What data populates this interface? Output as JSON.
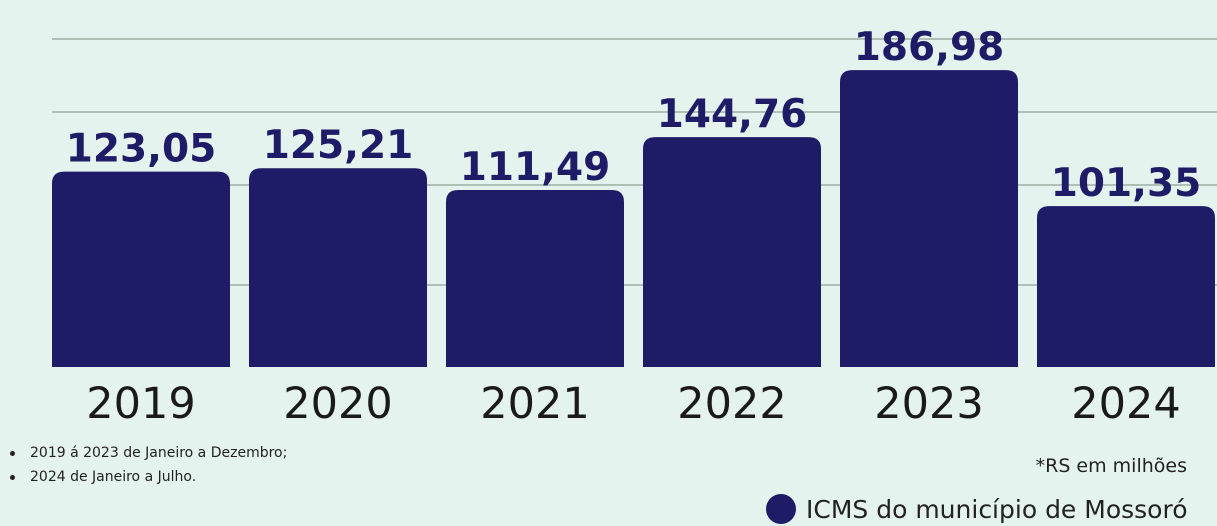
{
  "chart_data": {
    "type": "bar",
    "categories": [
      "2019",
      "2020",
      "2021",
      "2022",
      "2023",
      "2024"
    ],
    "values": [
      123.05,
      125.21,
      111.49,
      144.76,
      186.98,
      101.35
    ],
    "value_labels": [
      "123,05",
      "125,21",
      "111,49",
      "144,76",
      "186,98",
      "101,35"
    ],
    "series": [
      {
        "name": "ICMS do município de Mossoró",
        "values": [
          123.05,
          125.21,
          111.49,
          144.76,
          186.98,
          101.35
        ]
      }
    ],
    "title": "",
    "xlabel": "",
    "ylabel": "",
    "ylim": [
      0,
      194
    ],
    "grid": true,
    "bar_color": "#1e1c66",
    "legend_position": "bottom-right"
  },
  "notes": [
    "2019 á 2023 de Janeiro a Dezembro;",
    "2024 de Janeiro a Julho."
  ],
  "unit_note": "*RS em milhões",
  "legend": {
    "label": "ICMS do município de Mossoró",
    "color": "#1e1c66"
  }
}
